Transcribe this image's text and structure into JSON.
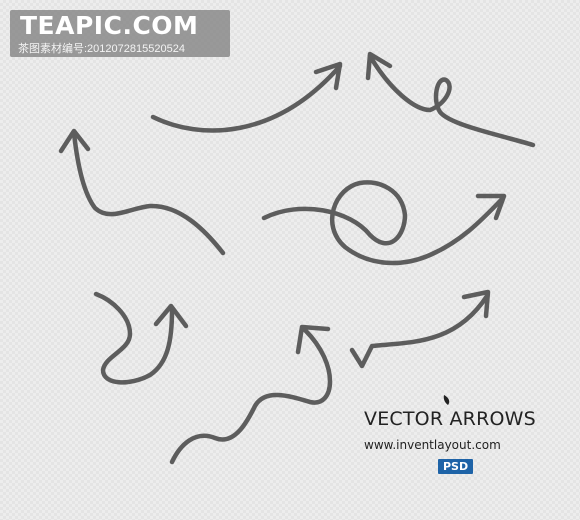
{
  "watermark": {
    "title": "TEAPIC.COM",
    "subtitle": "茶图素材编号:20120728155205​24"
  },
  "product": {
    "title": "VECTOR ARROWS",
    "website": "www.inventlayout.com",
    "badge": "PSD"
  },
  "colors": {
    "arrow_stroke": "#5d5d5d",
    "badge_bg": "#1e63a7",
    "text_dark": "#222222"
  },
  "icons": [
    "leaf-icon",
    "arrow-icon"
  ]
}
